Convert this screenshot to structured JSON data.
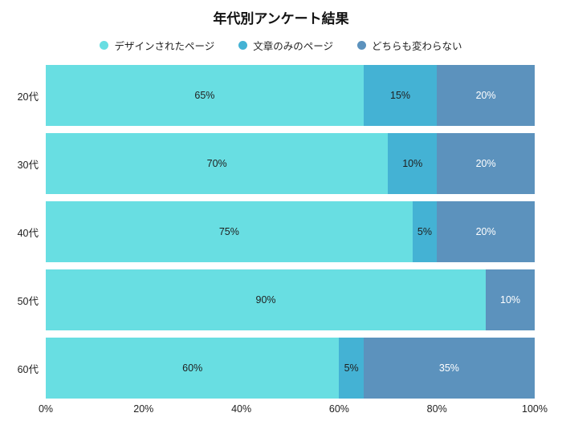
{
  "chart_data": {
    "type": "bar",
    "orientation": "horizontal",
    "stacked": true,
    "title": "年代別アンケート結果",
    "categories": [
      "20代",
      "30代",
      "40代",
      "50代",
      "60代"
    ],
    "series": [
      {
        "name": "デザインされたページ",
        "color": "#68DEE2",
        "value_text_color": "#1f1f1f",
        "values": [
          65,
          70,
          75,
          90,
          60
        ]
      },
      {
        "name": "文章のみのページ",
        "color": "#44B2D4",
        "value_text_color": "#1f1f1f",
        "values": [
          15,
          10,
          5,
          0,
          5
        ]
      },
      {
        "name": "どちらも変わらない",
        "color": "#5C92BD",
        "value_text_color": "#ffffff",
        "values": [
          20,
          20,
          20,
          10,
          35
        ]
      }
    ],
    "x_ticks": [
      "0%",
      "20%",
      "40%",
      "60%",
      "80%",
      "100%"
    ],
    "xlim": [
      0,
      100
    ],
    "value_suffix": "%",
    "show_value_labels": true,
    "legend_position": "top",
    "grid": false,
    "background": "#ffffff"
  }
}
